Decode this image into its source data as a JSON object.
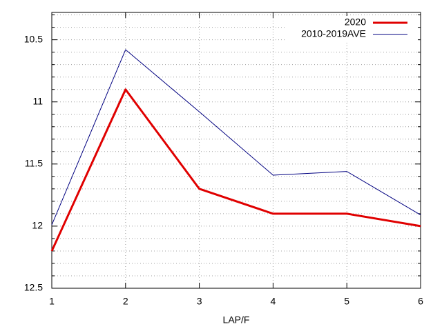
{
  "chart_data": {
    "type": "line",
    "xlabel": "LAP/F",
    "x": [
      1,
      2,
      3,
      4,
      5,
      6
    ],
    "series": [
      {
        "name": "2020",
        "color": "#e00000",
        "width": 3,
        "values": [
          12.2,
          10.9,
          11.7,
          11.9,
          11.9,
          12.0
        ]
      },
      {
        "name": "2010-2019AVE",
        "color": "#000080",
        "width": 1,
        "values": [
          11.99,
          10.58,
          11.08,
          11.59,
          11.56,
          11.91
        ]
      }
    ],
    "xlim": [
      1,
      6
    ],
    "xticks": [
      1,
      2,
      3,
      4,
      5,
      6
    ],
    "ylim": [
      10.28,
      12.5
    ],
    "y_reversed": true,
    "yticks": [
      10.5,
      11,
      11.5,
      12,
      12.5
    ],
    "yminorticks": [
      10.3,
      10.4,
      10.6,
      10.7,
      10.8,
      10.9,
      11.1,
      11.2,
      11.3,
      11.4,
      11.6,
      11.7,
      11.8,
      11.9,
      12.1,
      12.2,
      12.3,
      12.4
    ],
    "grid": true,
    "legend": "upper right"
  }
}
